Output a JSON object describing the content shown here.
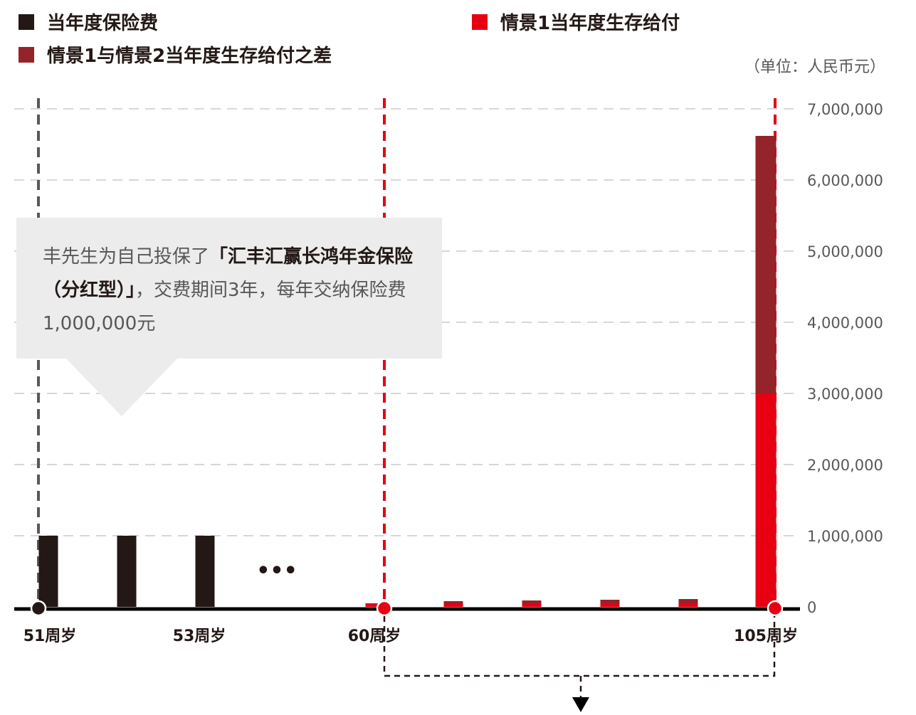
{
  "legend": [
    {
      "label": "当年度保险费",
      "color": "#231815"
    },
    {
      "label": "情景1当年度生存给付",
      "color": "#e60012"
    },
    {
      "label": "情景1与情景2当年度生存给付之差",
      "color": "#95232a"
    }
  ],
  "unit_label": "（单位：人民币元）",
  "callout": {
    "part1": "丰先生为自己投保了",
    "product": "「汇丰汇赢长鸿年金保险（分红型）」",
    "part2": "，交费期间3年，每年交纳保险费1,000,000元"
  },
  "ellipsis": "•••",
  "chart_data": {
    "type": "bar",
    "ylim": [
      0,
      7000000
    ],
    "y_ticks": [
      "0",
      "1,000,000",
      "2,000,000",
      "3,000,000",
      "4,000,000",
      "5,000,000",
      "6,000,000",
      "7,000,000"
    ],
    "x_tick_labels": [
      "51周岁",
      "53周岁",
      "60周岁",
      "105周岁"
    ],
    "series": [
      {
        "name": "当年度保险费",
        "color": "#231815",
        "values": [
          1000000,
          1000000,
          1000000,
          0,
          0,
          0,
          0,
          0,
          0
        ]
      },
      {
        "name": "情景1当年度生存给付",
        "color": "#e60012",
        "values": [
          0,
          0,
          0,
          50000,
          50000,
          50000,
          50000,
          50000,
          3000000
        ]
      },
      {
        "name": "情景1与情景2当年度生存给付之差",
        "color": "#95232a",
        "values": [
          0,
          0,
          0,
          0,
          30000,
          40000,
          50000,
          60000,
          3620000
        ]
      }
    ],
    "markers": [
      "51周岁",
      "60周岁",
      "105周岁"
    ]
  }
}
